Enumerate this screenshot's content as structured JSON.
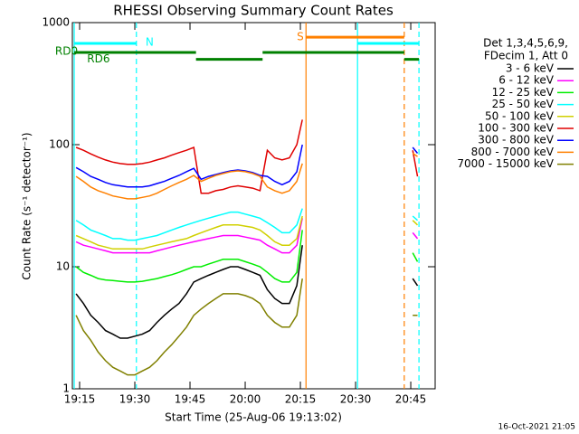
{
  "chart_data": {
    "type": "line",
    "title": "RHESSI Observing Summary Count Rates",
    "xlabel": "Start Time (25-Aug-06 19:13:02)",
    "ylabel": "Count Rate (s⁻¹ detector⁻¹)",
    "legend_header": [
      "Det 1,3,4,5,6,9,",
      "FDecim 1, Att 0"
    ],
    "footer": "16-Oct-2021 21:05",
    "ylog": true,
    "xlim": [
      0,
      98.6
    ],
    "ylim": [
      1,
      1000
    ],
    "yticks": [
      1,
      10,
      100,
      1000
    ],
    "xticks": [
      {
        "value": 1.97,
        "label": "19:15"
      },
      {
        "value": 16.97,
        "label": "19:30"
      },
      {
        "value": 31.97,
        "label": "19:45"
      },
      {
        "value": 46.97,
        "label": "20:00"
      },
      {
        "value": 61.97,
        "label": "20:15"
      },
      {
        "value": 76.97,
        "label": "20:30"
      },
      {
        "value": 91.97,
        "label": "20:45"
      }
    ],
    "x": [
      1,
      3,
      5,
      7,
      9,
      11,
      13,
      15,
      17,
      19,
      21,
      23,
      25,
      27,
      29,
      31,
      33,
      35,
      37,
      39,
      41,
      43,
      45,
      47,
      49,
      51,
      53,
      55,
      57,
      59,
      61,
      62.5,
      78,
      92.5,
      93.8
    ],
    "series": [
      {
        "name": "3 - 6 keV",
        "color": "#000000",
        "values": [
          6,
          5,
          4,
          3.5,
          3,
          2.8,
          2.6,
          2.6,
          2.7,
          2.8,
          3,
          3.5,
          4,
          4.5,
          5,
          6,
          7.5,
          8,
          8.5,
          9,
          9.5,
          10,
          10,
          9.5,
          9,
          8.5,
          6.5,
          5.5,
          5,
          5,
          7,
          15,
          null,
          8,
          7
        ]
      },
      {
        "name": "6 - 12 keV",
        "color": "#ff00ff",
        "values": [
          16,
          15,
          14.5,
          14,
          13.5,
          13,
          13,
          13,
          13,
          13,
          13,
          13.5,
          14,
          14.5,
          15,
          15.5,
          16,
          16.5,
          17,
          17.5,
          18,
          18,
          18,
          17.5,
          17,
          16.5,
          15,
          14,
          13,
          13,
          15,
          25,
          null,
          19,
          17
        ]
      },
      {
        "name": "12 - 25 keV",
        "color": "#00ee00",
        "values": [
          10,
          9,
          8.5,
          8,
          7.8,
          7.7,
          7.6,
          7.5,
          7.5,
          7.6,
          7.8,
          8,
          8.3,
          8.6,
          9,
          9.5,
          10,
          10,
          10.5,
          11,
          11.5,
          11.5,
          11.5,
          11,
          10.5,
          10,
          9,
          8,
          7.5,
          7.5,
          9,
          20,
          null,
          13,
          11
        ]
      },
      {
        "name": "25 - 50 keV",
        "color": "#00ffff",
        "values": [
          24,
          22,
          20,
          19,
          18,
          17,
          17,
          16.5,
          16.5,
          17,
          17.5,
          18,
          19,
          20,
          21,
          22,
          23,
          24,
          25,
          26,
          27,
          28,
          28,
          27,
          26,
          25,
          23,
          21,
          19,
          19,
          22,
          30,
          null,
          26,
          24
        ]
      },
      {
        "name": "50 - 100 keV",
        "color": "#d0d000",
        "values": [
          18,
          17,
          16,
          15,
          14.5,
          14,
          14,
          14,
          14,
          14,
          14.5,
          15,
          15.5,
          16,
          16.5,
          17,
          18,
          19,
          20,
          21,
          22,
          22,
          22,
          21.5,
          21,
          20,
          18,
          16,
          15,
          15,
          17,
          26,
          null,
          24,
          22
        ]
      },
      {
        "name": "100 - 300 keV",
        "color": "#e00000",
        "values": [
          95,
          90,
          84,
          79,
          75,
          72,
          70,
          69,
          69,
          70,
          72,
          75,
          78,
          82,
          86,
          90,
          95,
          40,
          40,
          42,
          43,
          45,
          46,
          45,
          44,
          42,
          90,
          78,
          75,
          78,
          100,
          160,
          null,
          90,
          55
        ]
      },
      {
        "name": "300 - 800 keV",
        "color": "#0000ff",
        "values": [
          65,
          60,
          55,
          52,
          49,
          47,
          46,
          45,
          45,
          45,
          46,
          48,
          50,
          53,
          56,
          60,
          64,
          52,
          55,
          57,
          59,
          61,
          62,
          61,
          59,
          56,
          55,
          50,
          47,
          50,
          60,
          100,
          null,
          95,
          85
        ]
      },
      {
        "name": "800 - 7000 keV",
        "color": "#ff8000",
        "values": [
          55,
          50,
          45,
          42,
          40,
          38,
          37,
          36,
          36,
          37,
          38,
          40,
          43,
          46,
          49,
          52,
          56,
          50,
          53,
          56,
          58,
          60,
          61,
          60,
          58,
          55,
          45,
          42,
          40,
          42,
          50,
          70,
          null,
          85,
          80
        ]
      },
      {
        "name": "7000 - 15000 keV",
        "color": "#808000",
        "values": [
          4,
          3,
          2.5,
          2,
          1.7,
          1.5,
          1.4,
          1.3,
          1.3,
          1.4,
          1.5,
          1.7,
          2,
          2.3,
          2.7,
          3.2,
          4,
          4.5,
          5,
          5.5,
          6,
          6,
          6,
          5.8,
          5.5,
          5,
          4,
          3.5,
          3.2,
          3.2,
          4,
          8,
          null,
          4,
          4
        ]
      }
    ],
    "intervals": [
      {
        "color": "#00ffff",
        "start": 0.5,
        "end": 17.4,
        "level": 675
      },
      {
        "color": "#00ffff",
        "start": 77.5,
        "end": 94.2,
        "level": 675
      },
      {
        "color": "#ff8000",
        "start": 63.5,
        "end": 90.2,
        "level": 760
      },
      {
        "color": "#008000",
        "start": 0.5,
        "end": 33.6,
        "level": 570
      },
      {
        "color": "#008000",
        "start": 33.6,
        "end": 51.7,
        "level": 500
      },
      {
        "color": "#008000",
        "start": 51.7,
        "end": 90.2,
        "level": 570
      },
      {
        "color": "#008000",
        "start": 90.2,
        "end": 94.2,
        "level": 500
      }
    ],
    "markers": [
      {
        "x": 0.5,
        "color": "#00ffff",
        "dashed": false
      },
      {
        "x": 17.4,
        "color": "#00ffff",
        "dashed": true
      },
      {
        "x": 63.5,
        "color": "#ff8000",
        "dashed": false
      },
      {
        "x": 77.5,
        "color": "#00ffff",
        "dashed": false
      },
      {
        "x": 90.2,
        "color": "#ff8000",
        "dashed": true
      },
      {
        "x": 94.2,
        "color": "#00ffff",
        "dashed": true
      }
    ],
    "annotations": [
      {
        "text": "N",
        "x": 19.9,
        "y": 690,
        "color": "#00ffff"
      },
      {
        "text": "S",
        "x": 61,
        "y": 760,
        "color": "#ff8000"
      },
      {
        "text": "RD0",
        "x": -4.7,
        "y": 580,
        "color": "#008000"
      },
      {
        "text": "RD6",
        "x": 4,
        "y": 500,
        "color": "#008000"
      }
    ]
  }
}
